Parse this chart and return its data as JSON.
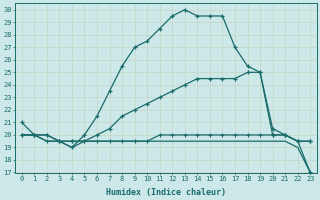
{
  "xlabel": "Humidex (Indice chaleur)",
  "background_color": "#cce8e8",
  "grid_color": "#aad4d4",
  "line_color": "#1a6b6b",
  "xlim": [
    -0.5,
    23.5
  ],
  "ylim": [
    17,
    30.5
  ],
  "ytick_values": [
    17,
    18,
    19,
    20,
    21,
    22,
    23,
    24,
    25,
    26,
    27,
    28,
    29,
    30
  ],
  "line1_x": [
    0,
    1,
    2,
    3,
    4,
    5,
    6,
    7,
    8,
    9,
    10,
    11,
    12,
    13,
    14,
    15,
    16,
    17,
    18,
    19,
    20,
    21,
    22,
    23
  ],
  "line1_y": [
    21,
    20,
    20,
    19.5,
    19,
    20,
    21.5,
    23.5,
    25.5,
    27,
    27.5,
    28.5,
    29.5,
    30,
    29.5,
    29.5,
    29.5,
    27,
    25.5,
    25,
    20,
    20,
    19.5,
    19.5
  ],
  "line2_x": [
    0,
    1,
    2,
    3,
    4,
    5,
    6,
    7,
    8,
    9,
    10,
    11,
    12,
    13,
    14,
    15,
    16,
    17,
    18,
    19,
    20,
    21,
    22,
    23
  ],
  "line2_y": [
    20,
    20,
    20,
    19.5,
    19.5,
    19.5,
    20,
    20.5,
    21.5,
    22,
    22.5,
    23,
    23.5,
    24,
    24.5,
    24.5,
    24.5,
    24.5,
    25,
    25,
    20.5,
    20,
    19.5,
    19.5
  ],
  "line3_x": [
    0,
    1,
    2,
    3,
    4,
    5,
    6,
    7,
    8,
    9,
    10,
    11,
    12,
    13,
    14,
    15,
    16,
    17,
    18,
    19,
    20,
    21,
    22,
    23
  ],
  "line3_y": [
    20,
    20,
    19.5,
    19.5,
    19.5,
    19.5,
    19.5,
    19.5,
    19.5,
    19.5,
    19.5,
    20,
    20,
    20,
    20,
    20,
    20,
    20,
    20,
    20,
    20,
    20,
    19.5,
    17
  ],
  "line4_x": [
    0,
    1,
    2,
    3,
    4,
    5,
    6,
    7,
    8,
    9,
    10,
    11,
    12,
    13,
    14,
    15,
    16,
    17,
    18,
    19,
    20,
    21,
    22,
    23
  ],
  "line4_y": [
    20,
    20,
    19.5,
    19.5,
    19,
    19.5,
    19.5,
    19.5,
    19.5,
    19.5,
    19.5,
    19.5,
    19.5,
    19.5,
    19.5,
    19.5,
    19.5,
    19.5,
    19.5,
    19.5,
    19.5,
    19.5,
    19,
    17
  ]
}
